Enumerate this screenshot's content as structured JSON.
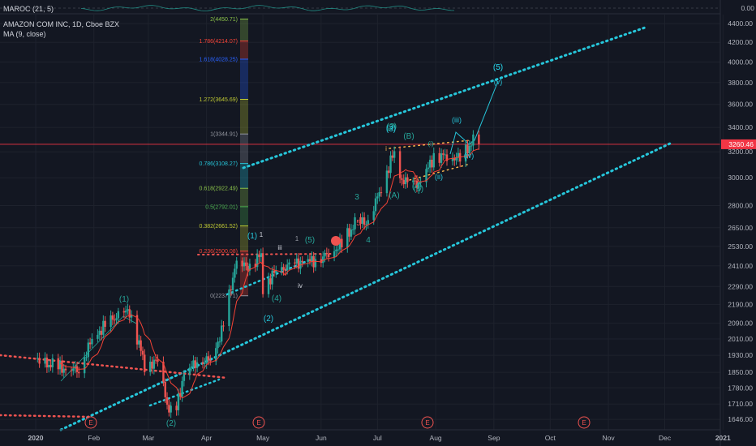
{
  "header": {
    "oscillator_label": "MAROC (21, 5)",
    "oscillator_value": "0.00",
    "symbol_title": "AMAZON COM INC, 1D, Cboe BZX",
    "ma_label": "MA (9, close)"
  },
  "colors": {
    "background": "#131722",
    "up": "#26a69a",
    "down": "#ef5350",
    "ma": "#f44336",
    "channel": "#26c6da",
    "current_price_line": "#f23645"
  },
  "price_badge": "3260.46",
  "chart_data": {
    "type": "candlestick",
    "title": "AMAZON COM INC, 1D, Cboe BZX",
    "ylim": [
      1630,
      4500
    ],
    "y_scale": "log",
    "y_ticks": [
      "4400.00",
      "4200.00",
      "4000.00",
      "3800.00",
      "3600.00",
      "3400.00",
      "3200.00",
      "3000.00",
      "2800.00",
      "2650.00",
      "2530.00",
      "2410.00",
      "2290.00",
      "2190.00",
      "2090.00",
      "2010.00",
      "1930.00",
      "1850.00",
      "1780.00",
      "1710.00",
      "1646.00"
    ],
    "x_labels": [
      "2020",
      "Feb",
      "Mar",
      "Apr",
      "May",
      "Jun",
      "Jul",
      "Aug",
      "Sep",
      "Oct",
      "Nov",
      "Dec",
      "2021"
    ],
    "current_price": 3260.46,
    "fib_levels": [
      {
        "label": "2(4450.71)",
        "value": 4450.71,
        "color": "#8bc34a"
      },
      {
        "label": "1.786(4214.07)",
        "value": 4214.07,
        "color": "#f44336"
      },
      {
        "label": "1.618(4028.25)",
        "value": 4028.25,
        "color": "#2962ff"
      },
      {
        "label": "1.272(3645.69)",
        "value": 3645.69,
        "color": "#c0ca33"
      },
      {
        "label": "1(3344.91)",
        "value": 3344.91,
        "color": "#9598a1"
      },
      {
        "label": "0.786(3108.27)",
        "value": 3108.27,
        "color": "#26c6da"
      },
      {
        "label": "0.618(2922.49)",
        "value": 2922.49,
        "color": "#8bc34a"
      },
      {
        "label": "0.5(2792.01)",
        "value": 2792.01,
        "color": "#4caf50"
      },
      {
        "label": "0.382(2661.52)",
        "value": 2661.52,
        "color": "#c0ca33"
      },
      {
        "label": "0.236(2500.08)",
        "value": 2500.08,
        "color": "#f44336"
      },
      {
        "label": "0(2237.71)",
        "value": 2237.71,
        "color": "#9598a1"
      }
    ],
    "wave_labels": [
      "(1)",
      "(2)",
      "(3)",
      "(4)",
      "(5)",
      "(1)",
      "(2)",
      "(3)",
      "(4)",
      "(5)",
      "1",
      "iii",
      "iv",
      "1",
      "3",
      "4",
      "5",
      "(3)",
      "(B)",
      "(A)",
      "(iii)",
      "(ii)",
      "(iv)",
      "(v)",
      "(5)",
      "(i)",
      "(4)",
      "i",
      "E",
      "E",
      "E",
      "E"
    ],
    "close_series": [
      {
        "date": "2020-01-02",
        "close": 1898
      },
      {
        "date": "2020-01-10",
        "close": 1883
      },
      {
        "date": "2020-01-17",
        "close": 1865
      },
      {
        "date": "2020-01-24",
        "close": 1861
      },
      {
        "date": "2020-01-31",
        "close": 2008
      },
      {
        "date": "2020-02-07",
        "close": 2079
      },
      {
        "date": "2020-02-14",
        "close": 2134
      },
      {
        "date": "2020-02-20",
        "close": 2153
      },
      {
        "date": "2020-02-28",
        "close": 1884
      },
      {
        "date": "2020-03-06",
        "close": 1901
      },
      {
        "date": "2020-03-12",
        "close": 1676
      },
      {
        "date": "2020-03-16",
        "close": 1689
      },
      {
        "date": "2020-03-20",
        "close": 1846
      },
      {
        "date": "2020-03-27",
        "close": 1900
      },
      {
        "date": "2020-04-03",
        "close": 1907
      },
      {
        "date": "2020-04-09",
        "close": 2042
      },
      {
        "date": "2020-04-14",
        "close": 2283
      },
      {
        "date": "2020-04-16",
        "close": 2408
      },
      {
        "date": "2020-04-24",
        "close": 2410
      },
      {
        "date": "2020-04-30",
        "close": 2474
      },
      {
        "date": "2020-05-01",
        "close": 2286
      },
      {
        "date": "2020-05-08",
        "close": 2380
      },
      {
        "date": "2020-05-15",
        "close": 2410
      },
      {
        "date": "2020-05-22",
        "close": 2437
      },
      {
        "date": "2020-05-29",
        "close": 2442
      },
      {
        "date": "2020-06-05",
        "close": 2483
      },
      {
        "date": "2020-06-12",
        "close": 2545
      },
      {
        "date": "2020-06-19",
        "close": 2675
      },
      {
        "date": "2020-06-26",
        "close": 2692
      },
      {
        "date": "2020-07-02",
        "close": 2891
      },
      {
        "date": "2020-07-10",
        "close": 3200
      },
      {
        "date": "2020-07-13",
        "close": 3000
      },
      {
        "date": "2020-07-17",
        "close": 2961
      },
      {
        "date": "2020-07-24",
        "close": 2960
      },
      {
        "date": "2020-07-31",
        "close": 3164
      },
      {
        "date": "2020-08-07",
        "close": 3167
      },
      {
        "date": "2020-08-14",
        "close": 3148
      },
      {
        "date": "2020-08-21",
        "close": 3285
      },
      {
        "date": "2020-08-24",
        "close": 3260
      }
    ]
  }
}
